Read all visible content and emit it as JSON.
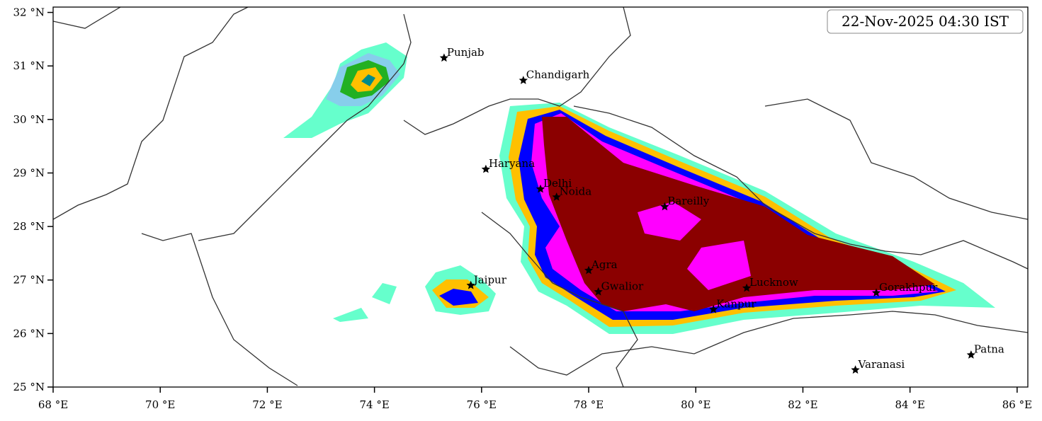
{
  "timestamp": "22-Nov-2025 04:30 IST",
  "map": {
    "xlim": [
      68,
      86.2
    ],
    "ylim": [
      25,
      32.1
    ],
    "xticks": [
      {
        "value": 68,
        "label": "68 °E"
      },
      {
        "value": 70,
        "label": "70 °E"
      },
      {
        "value": 72,
        "label": "72 °E"
      },
      {
        "value": 74,
        "label": "74 °E"
      },
      {
        "value": 76,
        "label": "76 °E"
      },
      {
        "value": 78,
        "label": "78 °E"
      },
      {
        "value": 80,
        "label": "80 °E"
      },
      {
        "value": 82,
        "label": "82 °E"
      },
      {
        "value": 84,
        "label": "84 °E"
      },
      {
        "value": 86,
        "label": "86 °E"
      }
    ],
    "yticks": [
      {
        "value": 25,
        "label": "25 °N"
      },
      {
        "value": 26,
        "label": "26 °N"
      },
      {
        "value": 27,
        "label": "27 °N"
      },
      {
        "value": 28,
        "label": "28 °N"
      },
      {
        "value": 29,
        "label": "29 °N"
      },
      {
        "value": 30,
        "label": "30 °N"
      },
      {
        "value": 31,
        "label": "31 °N"
      },
      {
        "value": 32,
        "label": "32 °N"
      }
    ],
    "cities": [
      {
        "name": "Punjab",
        "lon": 75.3,
        "lat": 31.15
      },
      {
        "name": "Chandigarh",
        "lon": 76.78,
        "lat": 30.73
      },
      {
        "name": "Haryana",
        "lon": 76.08,
        "lat": 29.07
      },
      {
        "name": "Delhi",
        "lon": 77.1,
        "lat": 28.7
      },
      {
        "name": "Noida",
        "lon": 77.4,
        "lat": 28.55
      },
      {
        "name": "Bareilly",
        "lon": 79.42,
        "lat": 28.37
      },
      {
        "name": "Agra",
        "lon": 78.0,
        "lat": 27.18
      },
      {
        "name": "Jaipur",
        "lon": 75.8,
        "lat": 26.9
      },
      {
        "name": "Gwalior",
        "lon": 78.18,
        "lat": 26.78
      },
      {
        "name": "Lucknow",
        "lon": 80.95,
        "lat": 26.85
      },
      {
        "name": "Kanpur",
        "lon": 80.33,
        "lat": 26.45
      },
      {
        "name": "Gorakhpur",
        "lon": 83.37,
        "lat": 26.76
      },
      {
        "name": "Varanasi",
        "lon": 82.98,
        "lat": 25.32
      },
      {
        "name": "Patna",
        "lon": 85.14,
        "lat": 25.6
      }
    ]
  }
}
